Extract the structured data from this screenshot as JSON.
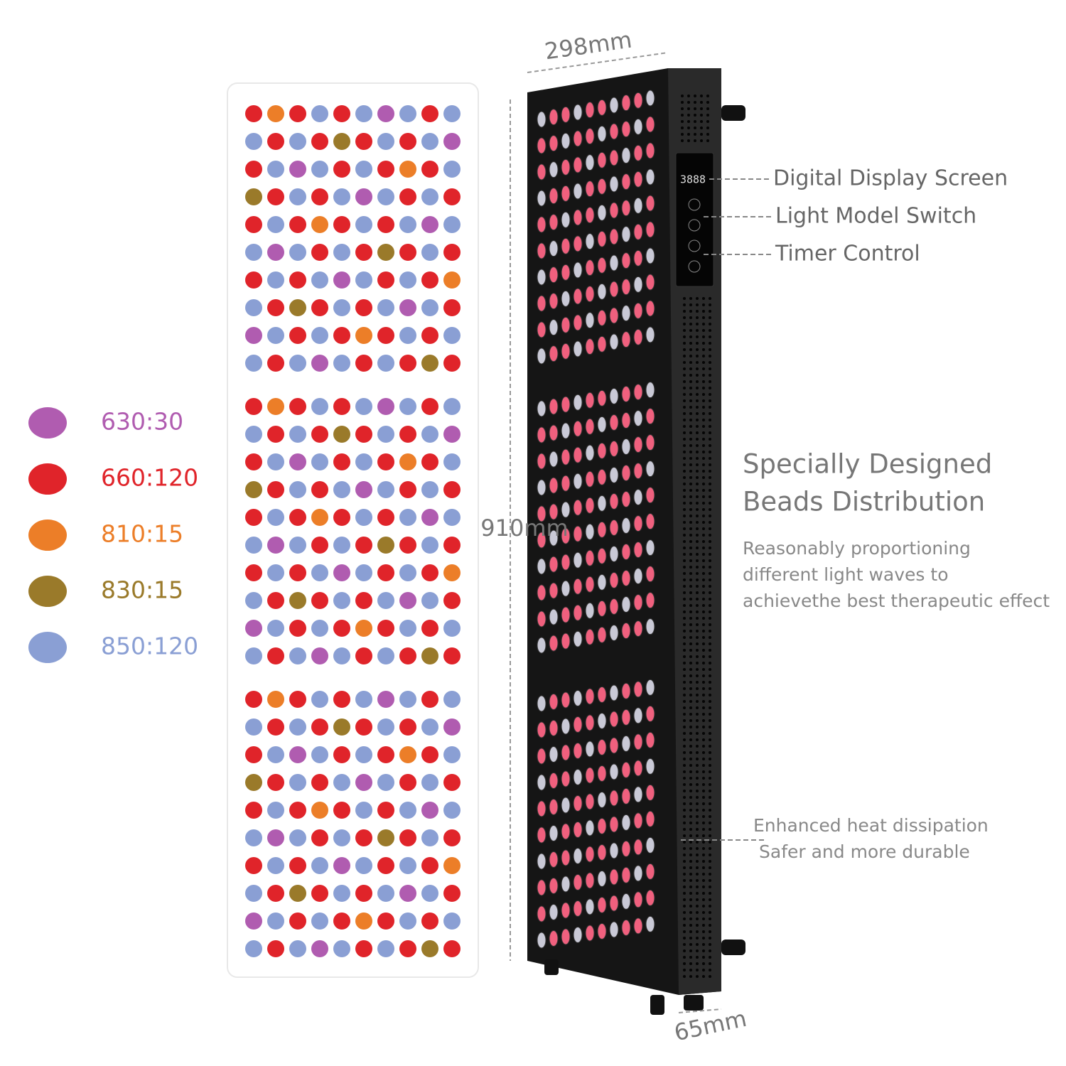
{
  "legend": [
    {
      "label": "630:30",
      "color": "#b05cb0"
    },
    {
      "label": "660:120",
      "color": "#e0242a"
    },
    {
      "label": "810:15",
      "color": "#ec7e28"
    },
    {
      "label": "830:15",
      "color": "#9a7a2a"
    },
    {
      "label": "850:120",
      "color": "#8a9fd4"
    }
  ],
  "dimensions": {
    "width": "298mm",
    "height": "910mm",
    "depth": "65mm"
  },
  "display_readout": "3888",
  "callouts": [
    "Digital Display Screen",
    "Light Model Switch",
    "Timer Control"
  ],
  "feature": {
    "heading": [
      "Specially Designed",
      "Beads Distribution"
    ],
    "description": [
      "Reasonably proportioning",
      "different light waves to",
      "achievethe best therapeutic effect"
    ]
  },
  "heat_note": [
    "Enhanced heat dissipation",
    "Safer and more durable"
  ]
}
